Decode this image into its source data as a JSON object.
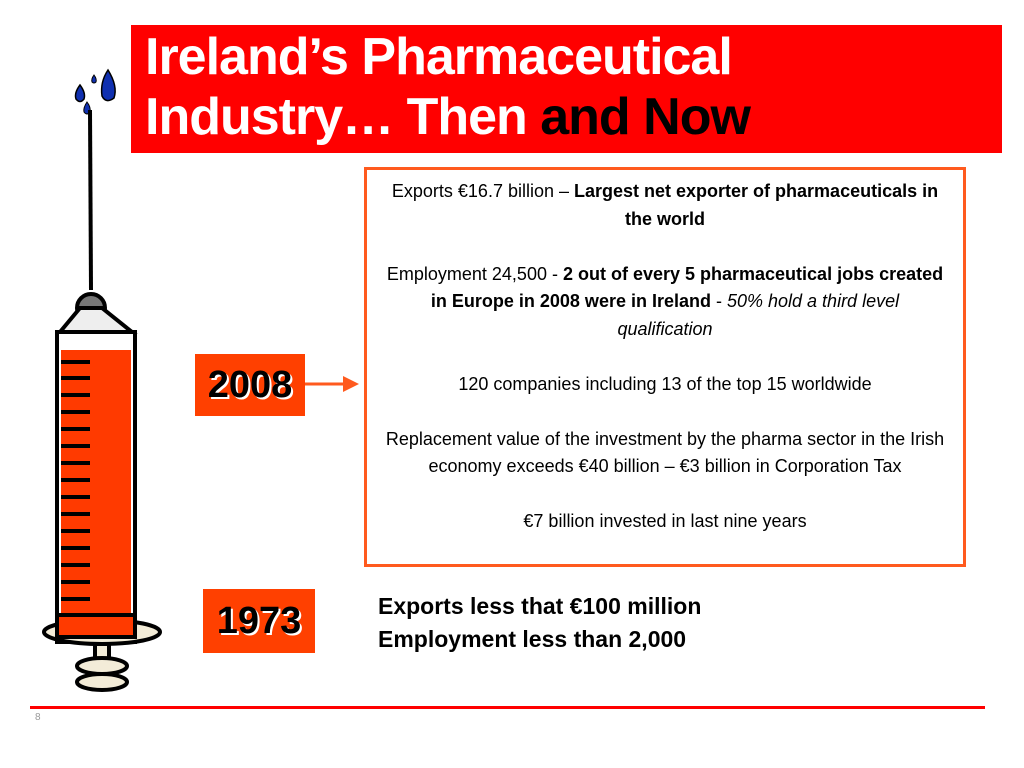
{
  "title": {
    "line1": "Ireland’s Pharmaceutical",
    "line2_white": "Industry… Then ",
    "line2_dark": "and Now"
  },
  "year_2008": "2008",
  "year_1973": "1973",
  "info_box": {
    "p1_regular": "Exports €16.7 billion – ",
    "p1_bold": "Largest net exporter of pharmaceuticals in the world",
    "p2_regular": "Employment 24,500 - ",
    "p2_bold": "2 out of every 5 pharmaceutical jobs created in Europe in 2008 were in Ireland",
    "p2_sep": " - ",
    "p2_italic": "50% hold a third level qualification",
    "p3": "120 companies including 13 of the top 15 worldwide",
    "p4": "Replacement value of the investment by the pharma sector in the Irish economy exceeds €40 billion – €3 billion in Corporation Tax",
    "p5": "€7 billion invested in last nine years"
  },
  "facts_1973": {
    "line1": "Exports less that €100 million",
    "line2": "Employment less than 2,000"
  },
  "page_number": "8",
  "colors": {
    "title_bg": "#ff0000",
    "year_box_bg": "#ff4000",
    "box_border": "#ff5a1e",
    "syringe_fill": "#ff3a00",
    "drops": "#1030b0"
  },
  "icons": {
    "syringe": "syringe-illustration",
    "arrow": "right-arrow"
  }
}
